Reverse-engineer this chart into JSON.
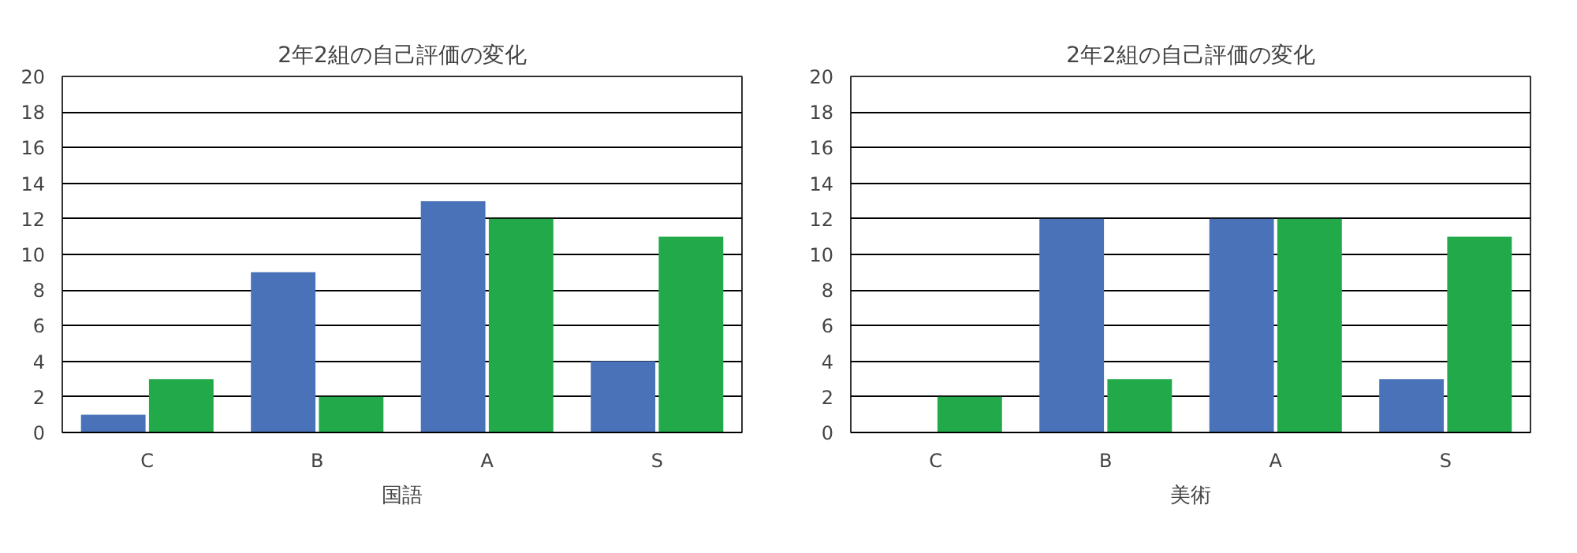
{
  "chart_data": [
    {
      "type": "bar",
      "title": "2年2組の自己評価の変化",
      "xlabel": "国語",
      "categories": [
        "C",
        "B",
        "A",
        "S"
      ],
      "series": [
        {
          "color": "#4a72b8",
          "values": [
            1,
            9,
            13,
            4
          ]
        },
        {
          "color": "#22aa4a",
          "values": [
            3,
            2,
            12,
            11
          ]
        }
      ],
      "ylim": [
        0,
        20
      ],
      "yticks": [
        0,
        2,
        4,
        6,
        8,
        10,
        12,
        14,
        16,
        18,
        20
      ],
      "grid": "y"
    },
    {
      "type": "bar",
      "title": "2年2組の自己評価の変化",
      "xlabel": "美術",
      "categories": [
        "C",
        "B",
        "A",
        "S"
      ],
      "series": [
        {
          "color": "#4a72b8",
          "values": [
            0,
            12,
            12,
            3
          ]
        },
        {
          "color": "#22aa4a",
          "values": [
            2,
            3,
            12,
            11
          ]
        }
      ],
      "ylim": [
        0,
        20
      ],
      "yticks": [
        0,
        2,
        4,
        6,
        8,
        10,
        12,
        14,
        16,
        18,
        20
      ],
      "grid": "y"
    }
  ]
}
